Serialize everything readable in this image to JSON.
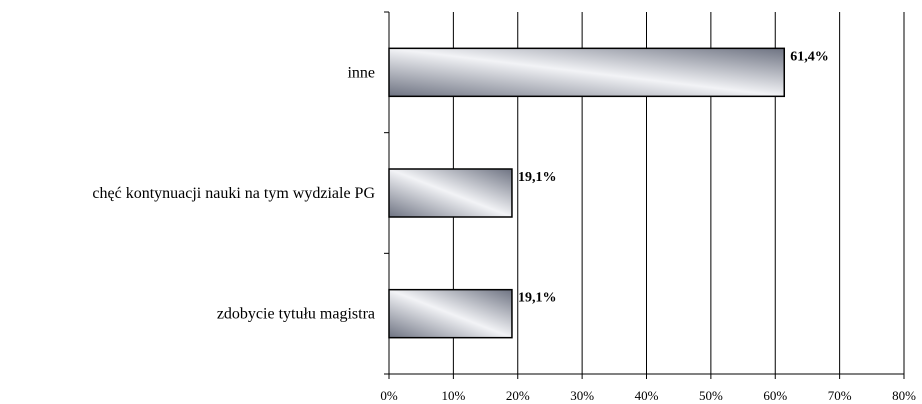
{
  "chart_data": {
    "type": "bar",
    "orientation": "horizontal",
    "categories": [
      "inne",
      "chęć kontynuacji nauki na tym wydziale PG",
      "zdobycie tytułu magistra"
    ],
    "values": [
      61.4,
      19.1,
      19.1
    ],
    "data_labels": [
      "61,4%",
      "19,1%",
      "19,1%"
    ],
    "xlim": [
      0,
      80
    ],
    "xticks": [
      0,
      10,
      20,
      30,
      40,
      50,
      60,
      70,
      80
    ],
    "xtick_labels": [
      "0%",
      "10%",
      "20%",
      "30%",
      "40%",
      "50%",
      "60%",
      "70%",
      "80%"
    ],
    "grid": true,
    "legend": false,
    "bar_fill_dark": "#6e7382",
    "bar_fill_light": "#f2f3f6",
    "title": "",
    "xlabel": "",
    "ylabel": ""
  }
}
